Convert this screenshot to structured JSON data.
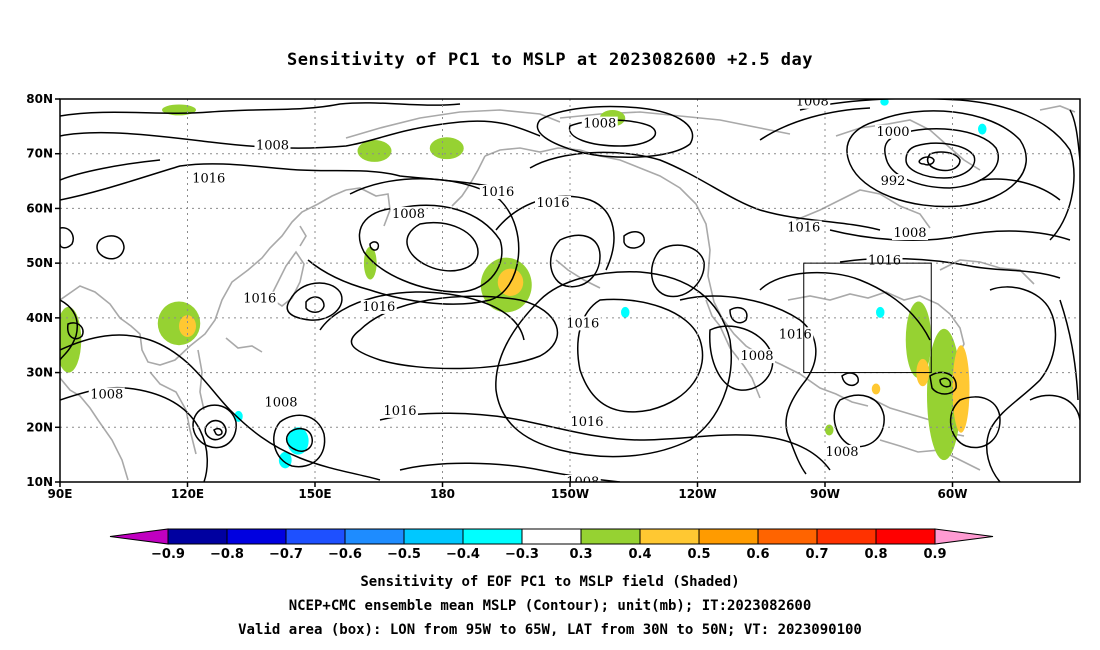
{
  "title": "Sensitivity of PC1 to MSLP at 2023082600 +2.5 day",
  "map": {
    "lat_ticks": [
      "80N",
      "70N",
      "60N",
      "50N",
      "40N",
      "30N",
      "20N",
      "10N"
    ],
    "lon_ticks": [
      "90E",
      "120E",
      "150E",
      "180",
      "150W",
      "120W",
      "90W",
      "60W"
    ],
    "contour_labels": [
      {
        "text": "1016",
        "lon": 125,
        "lat": 65.5
      },
      {
        "text": "1008",
        "lon": 140,
        "lat": 71.5
      },
      {
        "text": "1008",
        "lon": 217,
        "lat": 75.5
      },
      {
        "text": "1008",
        "lon": 267,
        "lat": 79.5
      },
      {
        "text": "1000",
        "lon": 286,
        "lat": 74
      },
      {
        "text": "992",
        "lon": 286,
        "lat": 65
      },
      {
        "text": "1016",
        "lon": 193,
        "lat": 63
      },
      {
        "text": "1008",
        "lon": 172,
        "lat": 59
      },
      {
        "text": "1016",
        "lon": 206,
        "lat": 61
      },
      {
        "text": "1016",
        "lon": 265,
        "lat": 56.5
      },
      {
        "text": "1008",
        "lon": 290,
        "lat": 55.5
      },
      {
        "text": "1016",
        "lon": 284,
        "lat": 50.5
      },
      {
        "text": "1016",
        "lon": 137,
        "lat": 43.5
      },
      {
        "text": "1016",
        "lon": 165,
        "lat": 42
      },
      {
        "text": "1016",
        "lon": 213,
        "lat": 39
      },
      {
        "text": "1016",
        "lon": 263,
        "lat": 37
      },
      {
        "text": "1008",
        "lon": 254,
        "lat": 33
      },
      {
        "text": "1008",
        "lon": 101,
        "lat": 26
      },
      {
        "text": "1008",
        "lon": 142,
        "lat": 24.5
      },
      {
        "text": "1016",
        "lon": 170,
        "lat": 23
      },
      {
        "text": "1016",
        "lon": 214,
        "lat": 21
      },
      {
        "text": "1008",
        "lon": 274,
        "lat": 15.5
      },
      {
        "text": "1008",
        "lon": 213,
        "lat": 10
      }
    ],
    "valid_box": {
      "lon_min": 265,
      "lon_max": 295,
      "lat_min": 30,
      "lat_max": 50
    },
    "positive_regions": [
      {
        "lon": 118,
        "lat": 39,
        "rlon": 5,
        "rlat": 4,
        "level": 0.3
      },
      {
        "lon": 120,
        "lat": 38.5,
        "rlon": 2,
        "rlat": 2,
        "level": 0.4
      },
      {
        "lon": 92,
        "lat": 36,
        "rlon": 3,
        "rlat": 6,
        "level": 0.3
      },
      {
        "lon": 195,
        "lat": 46,
        "rlon": 6,
        "rlat": 5,
        "level": 0.3
      },
      {
        "lon": 196,
        "lat": 46.5,
        "rlon": 3,
        "rlat": 2.5,
        "level": 0.4
      },
      {
        "lon": 164,
        "lat": 70.5,
        "rlon": 4,
        "rlat": 2,
        "level": 0.3
      },
      {
        "lon": 181,
        "lat": 71,
        "rlon": 4,
        "rlat": 2,
        "level": 0.3
      },
      {
        "lon": 220,
        "lat": 76.5,
        "rlon": 3,
        "rlat": 1.5,
        "level": 0.3
      },
      {
        "lon": 118,
        "lat": 78,
        "rlon": 4,
        "rlat": 1,
        "level": 0.3
      },
      {
        "lon": 163,
        "lat": 50,
        "rlon": 1.5,
        "rlat": 3,
        "level": 0.3
      },
      {
        "lon": 298,
        "lat": 26,
        "rlon": 4,
        "rlat": 12,
        "level": 0.3
      },
      {
        "lon": 302,
        "lat": 27,
        "rlon": 2,
        "rlat": 8,
        "level": 0.4
      },
      {
        "lon": 292,
        "lat": 36,
        "rlon": 3,
        "rlat": 7,
        "level": 0.3
      },
      {
        "lon": 293,
        "lat": 30,
        "rlon": 1.5,
        "rlat": 2.5,
        "level": 0.4
      },
      {
        "lon": 271,
        "lat": 19.5,
        "rlon": 1,
        "rlat": 1,
        "level": 0.3
      },
      {
        "lon": 282,
        "lat": 27,
        "rlon": 1,
        "rlat": 1,
        "level": 0.4
      }
    ],
    "negative_regions": [
      {
        "lon": 146,
        "lat": 17.5,
        "rlon": 2.5,
        "rlat": 2.5,
        "level": -0.4
      },
      {
        "lon": 132,
        "lat": 22,
        "rlon": 1,
        "rlat": 1,
        "level": -0.4
      },
      {
        "lon": 143,
        "lat": 14,
        "rlon": 1.5,
        "rlat": 1.5,
        "level": -0.4
      },
      {
        "lon": 223,
        "lat": 41,
        "rlon": 1,
        "rlat": 1,
        "level": -0.4
      },
      {
        "lon": 283,
        "lat": 41,
        "rlon": 1,
        "rlat": 1,
        "level": -0.4
      },
      {
        "lon": 284,
        "lat": 79.5,
        "rlon": 1,
        "rlat": 0.7,
        "level": -0.4
      },
      {
        "lon": 307,
        "lat": 74.5,
        "rlon": 1,
        "rlat": 1,
        "level": -0.4
      }
    ]
  },
  "colorbar": {
    "levels": [
      "-0.9",
      "-0.8",
      "-0.7",
      "-0.6",
      "-0.5",
      "-0.4",
      "-0.3",
      "0.3",
      "0.4",
      "0.5",
      "0.6",
      "0.7",
      "0.8",
      "0.9"
    ],
    "colors": [
      "#c000c0",
      "#0000a0",
      "#0000e0",
      "#1e50ff",
      "#1e8cff",
      "#00c8ff",
      "#00ffff",
      "#ffffff",
      "#96d232",
      "#ffc832",
      "#ff9b00",
      "#ff6400",
      "#ff3200",
      "#ff0000",
      "#ff9bd2"
    ]
  },
  "footer": {
    "line1": "Sensitivity of EOF PC1 to MSLP field (Shaded)",
    "line2": "NCEP+CMC ensemble mean MSLP (Contour); unit(mb); IT:2023082600",
    "line3": "Valid area (box): LON from 95W to 65W, LAT from 30N to 50N; VT: 2023090100"
  }
}
